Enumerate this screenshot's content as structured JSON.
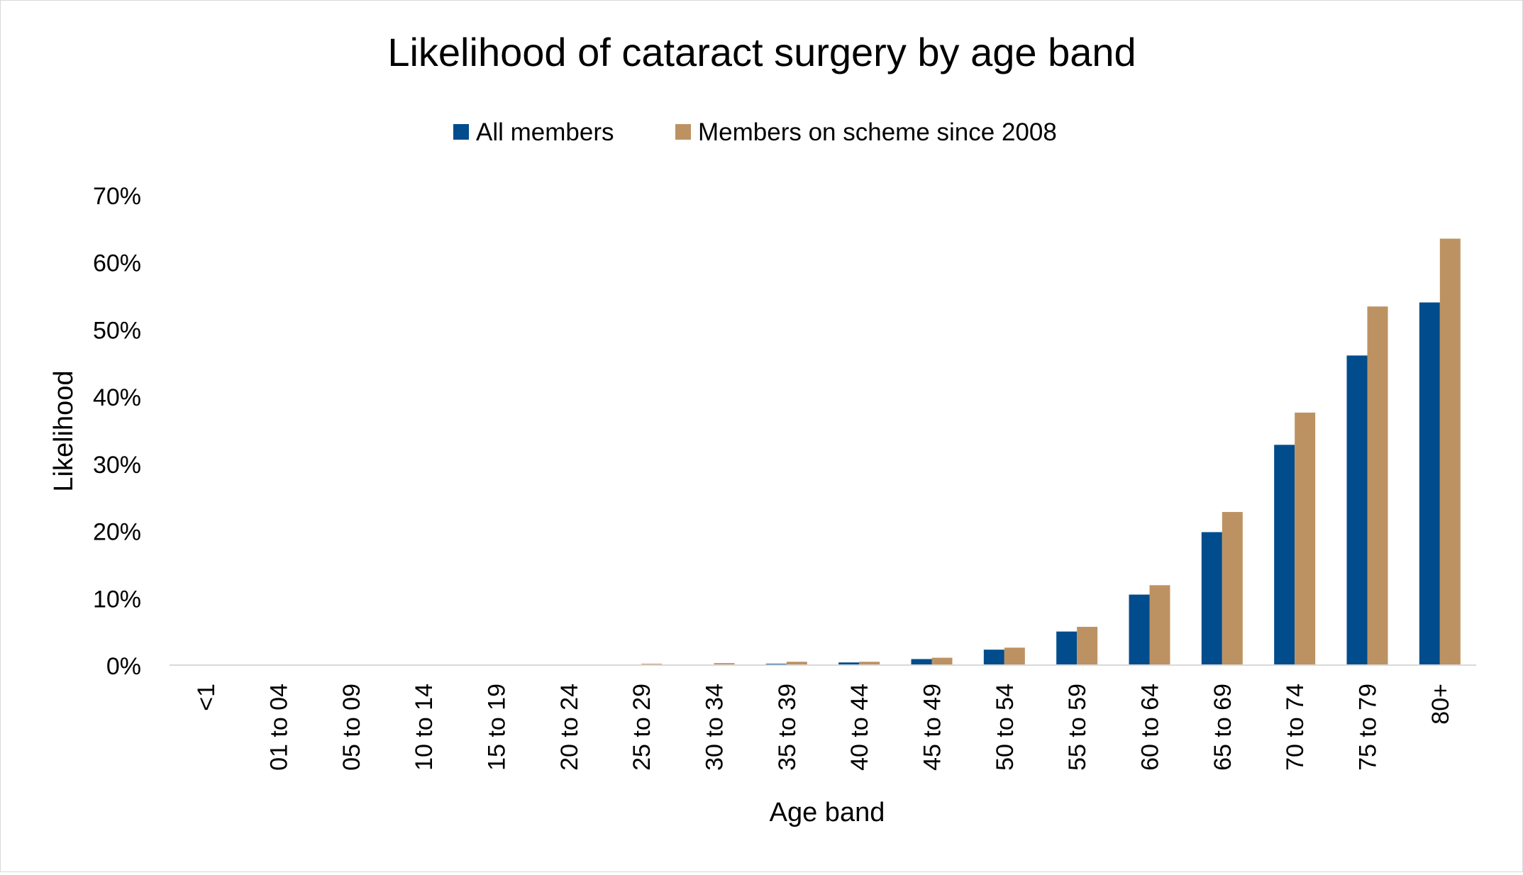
{
  "chart_data": {
    "type": "bar",
    "title": "Likelihood of cataract surgery by age band",
    "xlabel": "Age band",
    "ylabel": "Likelihood",
    "ylim": [
      0,
      70
    ],
    "y_ticks": [
      "0%",
      "10%",
      "20%",
      "30%",
      "40%",
      "50%",
      "60%",
      "70%"
    ],
    "y_tick_values": [
      0,
      10,
      20,
      30,
      40,
      50,
      60,
      70
    ],
    "grid": false,
    "legend_position": "top-center",
    "categories": [
      "<1",
      "01 to 04",
      "05 to 09",
      "10 to 14",
      "15 to 19",
      "20 to 24",
      "25 to 29",
      "30 to 34",
      "35 to 39",
      "40 to 44",
      "45 to 49",
      "50 to 54",
      "55 to 59",
      "60 to 64",
      "65 to 69",
      "70 to 74",
      "75 to 79",
      "80+"
    ],
    "series": [
      {
        "name": "All members",
        "color": "#004C8C",
        "values": [
          0,
          0,
          0,
          0,
          0,
          0,
          0.05,
          0.1,
          0.2,
          0.4,
          0.9,
          2.3,
          5.0,
          10.5,
          19.8,
          32.8,
          46.1,
          54.0
        ]
      },
      {
        "name": "Members on scheme since 2008",
        "color": "#BD9262",
        "values": [
          0,
          0,
          0,
          0,
          0,
          0,
          0.2,
          0.3,
          0.5,
          0.5,
          1.1,
          2.6,
          5.7,
          11.9,
          22.8,
          37.6,
          53.4,
          63.5
        ]
      }
    ]
  }
}
